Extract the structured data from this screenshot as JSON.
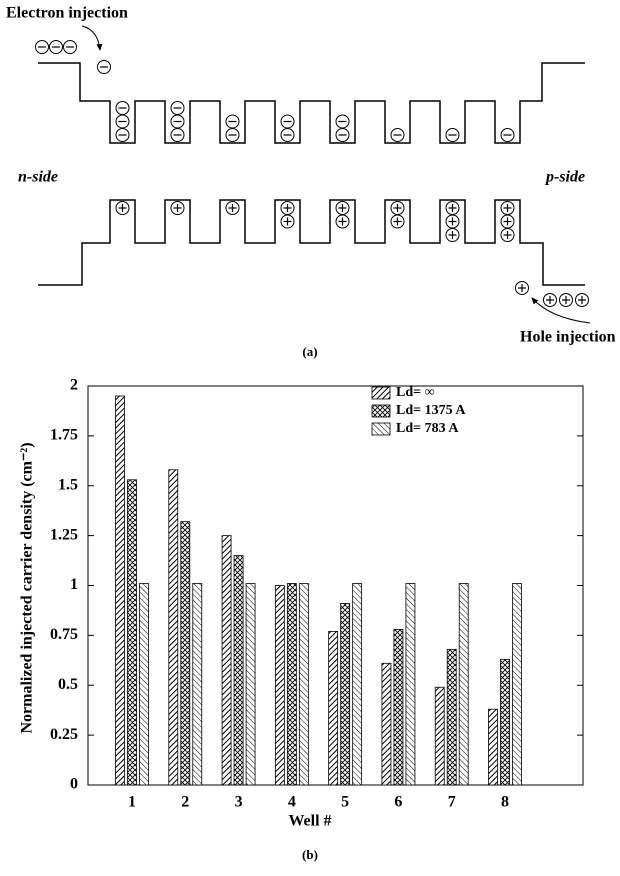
{
  "diagram": {
    "electron_label": "Electron injection",
    "n_label": "n-side",
    "p_label": "p-side",
    "hole_label": "Hole injection",
    "caption": "(a)"
  },
  "chart_data": {
    "type": "bar",
    "caption": "(b)",
    "x_label": "Well #",
    "y_label": "Normalized injected carrier density (cm⁻²)",
    "categories": [
      "1",
      "2",
      "3",
      "4",
      "5",
      "6",
      "7",
      "8"
    ],
    "series": [
      {
        "name": "Ld= ∞",
        "color": "#000000",
        "values": [
          1.95,
          1.58,
          1.25,
          1.0,
          0.77,
          0.61,
          0.49,
          0.38
        ]
      },
      {
        "name": "Ld= 1375 A",
        "color": "#000000",
        "values": [
          1.53,
          1.32,
          1.15,
          1.01,
          0.91,
          0.78,
          0.68,
          0.63
        ]
      },
      {
        "name": "Ld= 783 A",
        "color": "#000000",
        "values": [
          1.01,
          1.01,
          1.01,
          1.01,
          1.01,
          1.01,
          1.01,
          1.01
        ]
      }
    ],
    "ylim": [
      0,
      2
    ],
    "yticks": [
      0,
      0.25,
      0.5,
      0.75,
      1,
      1.25,
      1.5,
      1.75,
      2
    ],
    "legend": "upper right"
  }
}
